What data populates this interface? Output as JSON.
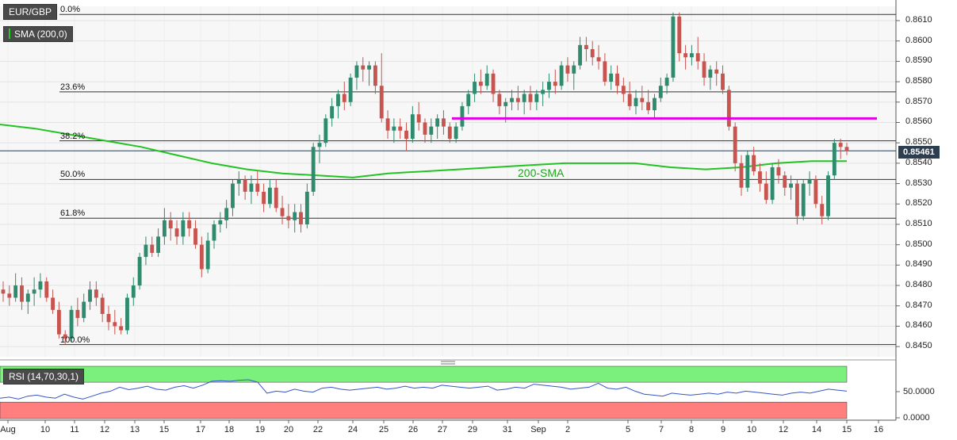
{
  "symbol": "EUR/GBP",
  "indicator": "SMA (200,0)",
  "rsi": {
    "label": "RSI (14,70,30,1)",
    "ticks": [
      "50.0000",
      "0.0000"
    ]
  },
  "current_price": "0.85461",
  "sma_annotation": "200-SMA",
  "colors": {
    "up": "#2e8b6e",
    "down": "#c8544f",
    "sma": "#22c322",
    "resistance": "#e000e0",
    "rsi_line": "#3355cc",
    "overbought": "#7cf07c",
    "oversold": "#ff7f7f"
  },
  "chart_data": {
    "type": "candlestick",
    "ylim": [
      0.8445,
      0.8617
    ],
    "y_ticks": [
      "0.8610",
      "0.8600",
      "0.8590",
      "0.8580",
      "0.8570",
      "0.8560",
      "0.8550",
      "0.8540",
      "0.8530",
      "0.8520",
      "0.8510",
      "0.8500",
      "0.8490",
      "0.8480",
      "0.8470",
      "0.8460",
      "0.8450"
    ],
    "x_ticks": [
      "Aug",
      "10",
      "11",
      "12",
      "13",
      "15",
      "17",
      "18",
      "19",
      "20",
      "22",
      "24",
      "25",
      "26",
      "27",
      "29",
      "31",
      "Sep",
      "2",
      "5",
      "7",
      "8",
      "9",
      "10",
      "12",
      "14",
      "15",
      "16"
    ],
    "fibonacci": [
      {
        "label": "0.0%",
        "value": 0.8613
      },
      {
        "label": "23.6%",
        "value": 0.8575
      },
      {
        "label": "38.2%",
        "value": 0.8551
      },
      {
        "label": "50.0%",
        "value": 0.8532
      },
      {
        "label": "61.8%",
        "value": 0.8513
      },
      {
        "label": "100.0%",
        "value": 0.8451
      }
    ],
    "resistance": 0.8562,
    "candles": [
      [
        0.8478,
        0.8482,
        0.8472,
        0.8476
      ],
      [
        0.8476,
        0.848,
        0.847,
        0.8474
      ],
      [
        0.8474,
        0.8486,
        0.8472,
        0.848
      ],
      [
        0.848,
        0.8484,
        0.8468,
        0.8472
      ],
      [
        0.8472,
        0.8478,
        0.8466,
        0.8476
      ],
      [
        0.8476,
        0.8484,
        0.847,
        0.8478
      ],
      [
        0.8478,
        0.8486,
        0.8474,
        0.8482
      ],
      [
        0.8482,
        0.8484,
        0.8472,
        0.8474
      ],
      [
        0.8474,
        0.8478,
        0.8466,
        0.8468
      ],
      [
        0.8468,
        0.8472,
        0.8454,
        0.8456
      ],
      [
        0.8456,
        0.8458,
        0.8451,
        0.8454
      ],
      [
        0.8454,
        0.847,
        0.8452,
        0.8468
      ],
      [
        0.8468,
        0.8474,
        0.846,
        0.8464
      ],
      [
        0.8464,
        0.8476,
        0.8462,
        0.8472
      ],
      [
        0.8472,
        0.8482,
        0.8468,
        0.8478
      ],
      [
        0.8478,
        0.8482,
        0.847,
        0.8474
      ],
      [
        0.8474,
        0.8476,
        0.8462,
        0.8466
      ],
      [
        0.8466,
        0.847,
        0.8458,
        0.8462
      ],
      [
        0.8462,
        0.8468,
        0.8456,
        0.846
      ],
      [
        0.846,
        0.8464,
        0.8456,
        0.8458
      ],
      [
        0.8458,
        0.8476,
        0.8456,
        0.8474
      ],
      [
        0.8474,
        0.8484,
        0.847,
        0.848
      ],
      [
        0.848,
        0.8496,
        0.8478,
        0.8494
      ],
      [
        0.8494,
        0.8504,
        0.849,
        0.85
      ],
      [
        0.85,
        0.8504,
        0.8494,
        0.8496
      ],
      [
        0.8496,
        0.8508,
        0.8494,
        0.8504
      ],
      [
        0.8504,
        0.8518,
        0.85,
        0.8512
      ],
      [
        0.8512,
        0.8516,
        0.8502,
        0.8508
      ],
      [
        0.8508,
        0.8512,
        0.85,
        0.8504
      ],
      [
        0.8504,
        0.8516,
        0.85,
        0.8512
      ],
      [
        0.8512,
        0.8516,
        0.8504,
        0.8508
      ],
      [
        0.8508,
        0.8512,
        0.8498,
        0.85
      ],
      [
        0.85,
        0.8504,
        0.8484,
        0.8488
      ],
      [
        0.8488,
        0.8506,
        0.8486,
        0.8502
      ],
      [
        0.8502,
        0.8512,
        0.8498,
        0.851
      ],
      [
        0.851,
        0.8516,
        0.8506,
        0.8512
      ],
      [
        0.8512,
        0.8522,
        0.8508,
        0.8518
      ],
      [
        0.8518,
        0.8532,
        0.8514,
        0.853
      ],
      [
        0.853,
        0.8536,
        0.8524,
        0.8532
      ],
      [
        0.8532,
        0.8534,
        0.8522,
        0.8526
      ],
      [
        0.8526,
        0.8534,
        0.852,
        0.853
      ],
      [
        0.853,
        0.8536,
        0.8524,
        0.8526
      ],
      [
        0.8526,
        0.853,
        0.8516,
        0.852
      ],
      [
        0.852,
        0.8532,
        0.8518,
        0.8528
      ],
      [
        0.8528,
        0.8532,
        0.8516,
        0.8518
      ],
      [
        0.8518,
        0.8524,
        0.851,
        0.8514
      ],
      [
        0.8514,
        0.852,
        0.8508,
        0.8512
      ],
      [
        0.8512,
        0.852,
        0.8506,
        0.8516
      ],
      [
        0.8516,
        0.852,
        0.8506,
        0.851
      ],
      [
        0.851,
        0.853,
        0.8508,
        0.8526
      ],
      [
        0.8526,
        0.855,
        0.8524,
        0.8548
      ],
      [
        0.8548,
        0.8554,
        0.854,
        0.855
      ],
      [
        0.855,
        0.8564,
        0.8548,
        0.8562
      ],
      [
        0.8562,
        0.8572,
        0.8558,
        0.8568
      ],
      [
        0.8568,
        0.8576,
        0.8562,
        0.8574
      ],
      [
        0.8574,
        0.858,
        0.8566,
        0.857
      ],
      [
        0.857,
        0.8584,
        0.8568,
        0.8582
      ],
      [
        0.8582,
        0.859,
        0.8576,
        0.8588
      ],
      [
        0.8588,
        0.8592,
        0.858,
        0.8586
      ],
      [
        0.8586,
        0.859,
        0.8578,
        0.8588
      ],
      [
        0.8588,
        0.859,
        0.8574,
        0.8578
      ],
      [
        0.8578,
        0.8594,
        0.856,
        0.8562
      ],
      [
        0.8562,
        0.8566,
        0.8552,
        0.8556
      ],
      [
        0.8556,
        0.8562,
        0.855,
        0.8558
      ],
      [
        0.8558,
        0.8562,
        0.8552,
        0.8556
      ],
      [
        0.8556,
        0.856,
        0.8546,
        0.8552
      ],
      [
        0.8552,
        0.8568,
        0.855,
        0.8564
      ],
      [
        0.8564,
        0.857,
        0.8556,
        0.856
      ],
      [
        0.856,
        0.8562,
        0.855,
        0.8554
      ],
      [
        0.8554,
        0.8562,
        0.855,
        0.8558
      ],
      [
        0.8558,
        0.8564,
        0.8552,
        0.8562
      ],
      [
        0.8562,
        0.8566,
        0.8554,
        0.8558
      ],
      [
        0.8558,
        0.856,
        0.855,
        0.8552
      ],
      [
        0.8552,
        0.856,
        0.855,
        0.8558
      ],
      [
        0.8558,
        0.857,
        0.8556,
        0.8568
      ],
      [
        0.8568,
        0.8576,
        0.8564,
        0.8574
      ],
      [
        0.8574,
        0.8584,
        0.857,
        0.858
      ],
      [
        0.858,
        0.8586,
        0.8574,
        0.8578
      ],
      [
        0.8578,
        0.8588,
        0.8576,
        0.8584
      ],
      [
        0.8584,
        0.8586,
        0.857,
        0.8574
      ],
      [
        0.8574,
        0.8576,
        0.8564,
        0.8568
      ],
      [
        0.8568,
        0.8572,
        0.856,
        0.857
      ],
      [
        0.857,
        0.8576,
        0.8566,
        0.8572
      ],
      [
        0.8572,
        0.8578,
        0.8566,
        0.857
      ],
      [
        0.857,
        0.8576,
        0.8564,
        0.8574
      ],
      [
        0.8574,
        0.8578,
        0.8566,
        0.857
      ],
      [
        0.857,
        0.8576,
        0.8566,
        0.8574
      ],
      [
        0.8574,
        0.858,
        0.8568,
        0.8576
      ],
      [
        0.8576,
        0.8584,
        0.8572,
        0.858
      ],
      [
        0.858,
        0.8586,
        0.8574,
        0.8578
      ],
      [
        0.8578,
        0.859,
        0.8576,
        0.8588
      ],
      [
        0.8588,
        0.8592,
        0.858,
        0.8584
      ],
      [
        0.8584,
        0.859,
        0.8576,
        0.8588
      ],
      [
        0.8588,
        0.8602,
        0.8586,
        0.8598
      ],
      [
        0.8598,
        0.8602,
        0.859,
        0.8596
      ],
      [
        0.8596,
        0.86,
        0.8588,
        0.8592
      ],
      [
        0.8592,
        0.8598,
        0.8586,
        0.859
      ],
      [
        0.859,
        0.8594,
        0.8578,
        0.858
      ],
      [
        0.858,
        0.8588,
        0.8576,
        0.8584
      ],
      [
        0.8584,
        0.8588,
        0.8574,
        0.8578
      ],
      [
        0.8578,
        0.8582,
        0.857,
        0.8574
      ],
      [
        0.8574,
        0.858,
        0.8566,
        0.8568
      ],
      [
        0.8568,
        0.8576,
        0.8564,
        0.8572
      ],
      [
        0.8572,
        0.8578,
        0.8566,
        0.857
      ],
      [
        0.857,
        0.8576,
        0.8564,
        0.8566
      ],
      [
        0.8566,
        0.8574,
        0.8562,
        0.8572
      ],
      [
        0.8572,
        0.8582,
        0.857,
        0.8578
      ],
      [
        0.8578,
        0.8584,
        0.8574,
        0.8582
      ],
      [
        0.8582,
        0.8614,
        0.858,
        0.8612
      ],
      [
        0.8612,
        0.8614,
        0.859,
        0.8594
      ],
      [
        0.8594,
        0.8598,
        0.8586,
        0.8592
      ],
      [
        0.8592,
        0.8598,
        0.8588,
        0.8594
      ],
      [
        0.8594,
        0.8602,
        0.8586,
        0.859
      ],
      [
        0.859,
        0.8594,
        0.8578,
        0.8582
      ],
      [
        0.8582,
        0.8588,
        0.8576,
        0.8586
      ],
      [
        0.8586,
        0.859,
        0.8578,
        0.8584
      ],
      [
        0.8584,
        0.8588,
        0.8574,
        0.8576
      ],
      [
        0.8576,
        0.8578,
        0.8556,
        0.8558
      ],
      [
        0.8558,
        0.856,
        0.8536,
        0.854
      ],
      [
        0.854,
        0.8544,
        0.8524,
        0.8528
      ],
      [
        0.8528,
        0.8546,
        0.8526,
        0.8544
      ],
      [
        0.8544,
        0.8548,
        0.8534,
        0.8536
      ],
      [
        0.8536,
        0.854,
        0.8526,
        0.853
      ],
      [
        0.853,
        0.8536,
        0.852,
        0.8522
      ],
      [
        0.8522,
        0.854,
        0.852,
        0.8538
      ],
      [
        0.8538,
        0.8542,
        0.853,
        0.8534
      ],
      [
        0.8534,
        0.8536,
        0.8524,
        0.8528
      ],
      [
        0.8528,
        0.8534,
        0.8522,
        0.853
      ],
      [
        0.853,
        0.8532,
        0.851,
        0.8514
      ],
      [
        0.8514,
        0.8532,
        0.8512,
        0.853
      ],
      [
        0.853,
        0.8536,
        0.8524,
        0.8532
      ],
      [
        0.8532,
        0.8534,
        0.8518,
        0.852
      ],
      [
        0.852,
        0.8524,
        0.851,
        0.8514
      ],
      [
        0.8514,
        0.8536,
        0.8512,
        0.8534
      ],
      [
        0.8534,
        0.8552,
        0.8532,
        0.855
      ],
      [
        0.855,
        0.8552,
        0.8542,
        0.8548
      ],
      [
        0.8548,
        0.855,
        0.8544,
        0.8546
      ]
    ],
    "sma": [
      0.8559,
      0.8557,
      0.8554,
      0.8551,
      0.8548,
      0.8544,
      0.854,
      0.8537,
      0.8535,
      0.8534,
      0.8533,
      0.8535,
      0.8536,
      0.8537,
      0.8538,
      0.8539,
      0.854,
      0.854,
      0.854,
      0.8538,
      0.8537,
      0.8538,
      0.854,
      0.8541,
      0.8541
    ],
    "rsi_values": [
      38,
      40,
      36,
      42,
      44,
      40,
      38,
      46,
      40,
      36,
      42,
      48,
      52,
      60,
      55,
      58,
      62,
      56,
      54,
      60,
      63,
      58,
      64,
      72,
      73,
      72,
      74,
      75,
      70,
      48,
      52,
      50,
      56,
      52,
      50,
      58,
      60,
      56,
      54,
      56,
      58,
      60,
      56,
      58,
      62,
      58,
      60,
      58,
      64,
      62,
      60,
      58,
      60,
      62,
      54,
      56,
      60,
      58,
      66,
      64,
      62,
      60,
      56,
      58,
      60,
      68,
      58,
      56,
      60,
      52,
      46,
      44,
      42,
      48,
      46,
      44,
      46,
      48,
      46,
      50,
      48,
      52,
      50,
      48,
      46,
      44,
      48,
      50,
      48,
      52,
      56,
      54,
      52
    ]
  }
}
